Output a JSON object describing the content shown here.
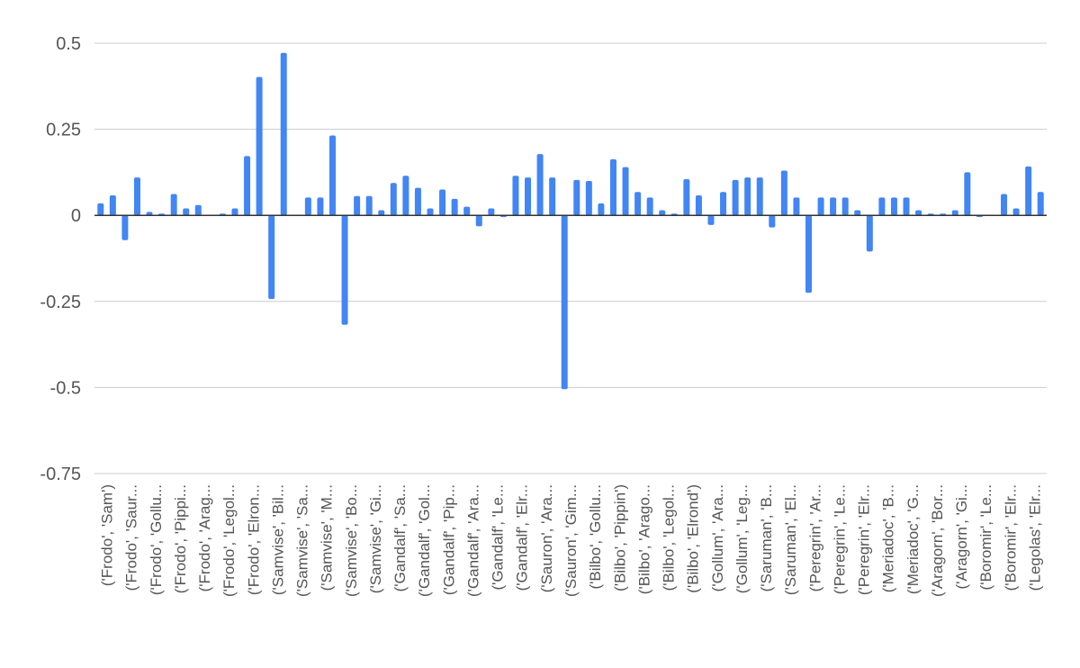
{
  "chart_data": {
    "type": "bar",
    "title": "",
    "xlabel": "",
    "ylabel": "",
    "ylim": [
      -0.75,
      0.5
    ],
    "yticks": [
      0.5,
      0.25,
      0,
      -0.25,
      -0.5,
      -0.75
    ],
    "ytick_labels": [
      "0.5",
      "0.25",
      "0",
      "-0.25",
      "-0.5",
      "-0.75"
    ],
    "grid": true,
    "legend": "none",
    "bar_color": "#4285f4",
    "tick_labels": [
      "('Frodo', 'Sam')",
      "('Frodo', 'Saur...",
      "('Frodo', 'Gollu...",
      "('Frodo', 'Pippi...",
      "('Frodo', 'Arag...",
      "('Frodo', 'Legol...",
      "('Frodo', 'Elron...",
      "('Samvise', 'Bil...",
      "('Samvise', 'Sa...",
      "('Samvise', 'M...",
      "('Samvise', 'Bo...",
      "('Samvise', 'Gi...",
      "('Gandalf', 'Sa...",
      "('Gandalf', 'Gol...",
      "('Gandalf', 'Pip...",
      "('Gandalf', 'Ara...",
      "('Gandalf', 'Le...",
      "('Gandalf', 'Elr...",
      "('Sauron', 'Ara...",
      "('Sauron', 'Gim...",
      "('Bilbo', 'Gollu...",
      "('Bilbo', 'Pippin')",
      "('Bilbo', 'Arago...",
      "('Bilbo', 'Legol...",
      "('Bilbo', 'Elrond')",
      "('Gollum', 'Ara...",
      "('Gollum', 'Leg...",
      "('Saruman', 'B...",
      "('Saruman', 'El...",
      "('Peregrin', 'Ar...",
      "('Peregrin', 'Le...",
      "('Peregrin', 'Elr...",
      "('Meriadoc', 'B...",
      "('Meriadoc', 'G...",
      "('Aragorn', 'Bor...",
      "('Aragorn', 'Gi...",
      "('Boromir', 'Le...",
      "('Boromir', 'Elr...",
      "('Legolas', 'Elr..."
    ],
    "values": [
      0.035,
      0.058,
      -0.072,
      0.11,
      0.01,
      0.005,
      0.062,
      0.02,
      0.03,
      0.0,
      0.005,
      0.02,
      0.172,
      0.402,
      -0.243,
      0.472,
      0.0,
      0.052,
      0.052,
      0.232,
      -0.318,
      0.056,
      0.056,
      0.015,
      0.094,
      0.115,
      0.08,
      0.02,
      0.075,
      0.048,
      0.025,
      -0.032,
      0.02,
      -0.005,
      0.115,
      0.11,
      0.178,
      0.11,
      -0.505,
      0.103,
      0.1,
      0.035,
      0.163,
      0.14,
      0.068,
      0.052,
      0.015,
      0.005,
      0.105,
      0.058,
      -0.028,
      0.068,
      0.103,
      0.11,
      0.11,
      -0.035,
      0.13,
      0.052,
      -0.225,
      0.052,
      0.052,
      0.052,
      0.015,
      -0.105,
      0.052,
      0.052,
      0.052,
      0.015,
      0.005,
      0.005,
      0.015,
      0.125,
      -0.005,
      0.0,
      0.062,
      0.02,
      0.142,
      0.068
    ]
  }
}
